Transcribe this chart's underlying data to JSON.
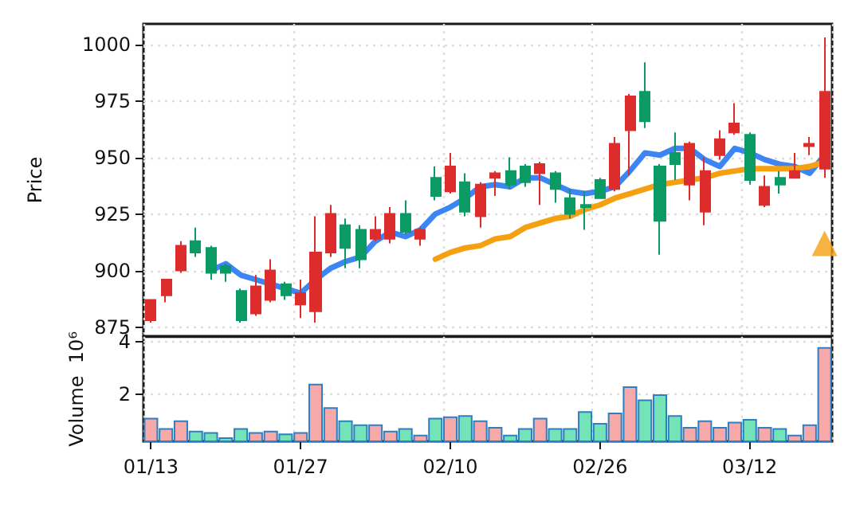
{
  "chart_data": [
    {
      "type": "candlestick",
      "ylabel": "Price",
      "categories": [
        null,
        null,
        null,
        null,
        null,
        null,
        null,
        null,
        null,
        null,
        null,
        null,
        null,
        null,
        null,
        null,
        null,
        null,
        null,
        null,
        null,
        null,
        null,
        null,
        null,
        null,
        null,
        null,
        null,
        null,
        null,
        null,
        null,
        null,
        null,
        null,
        null,
        null,
        null,
        null,
        null,
        null,
        null,
        null,
        null,
        null
      ],
      "ylim": [
        871,
        1009
      ],
      "yticks": [
        875,
        900,
        925,
        950,
        975,
        1000
      ],
      "grid": true,
      "tick_labels": "y",
      "series": [
        {
          "type": "candlestick",
          "ohlc": [
            [
              878,
              887,
              877,
              887
            ],
            [
              889,
              896,
              886,
              896
            ],
            [
              900,
              913,
              899,
              911
            ],
            [
              913,
              919,
              906,
              908
            ],
            [
              910,
              911,
              896,
              899
            ],
            [
              902,
              903,
              895,
              899
            ],
            [
              891,
              892,
              877,
              878
            ],
            [
              881,
              898,
              880,
              893
            ],
            [
              887,
              905,
              886,
              900
            ],
            [
              894,
              895,
              887,
              889
            ],
            [
              885,
              896,
              879,
              890
            ],
            [
              882,
              924,
              877,
              908
            ],
            [
              908,
              929,
              906,
              925
            ],
            [
              920,
              923,
              901,
              910
            ],
            [
              918,
              920,
              901,
              905
            ],
            [
              914,
              924,
              913,
              918
            ],
            [
              914,
              928,
              912,
              925
            ],
            [
              925,
              931,
              916,
              917
            ],
            [
              914,
              919,
              911,
              918
            ],
            [
              941,
              946,
              931,
              933
            ],
            [
              935,
              952,
              934,
              946
            ],
            [
              939,
              943,
              924,
              926
            ],
            [
              924,
              939,
              919,
              938
            ],
            [
              941,
              944,
              933,
              943
            ],
            [
              944,
              950,
              936,
              938
            ],
            [
              946,
              947,
              937,
              939
            ],
            [
              943,
              948,
              929,
              947
            ],
            [
              943,
              944,
              930,
              936
            ],
            [
              932,
              936,
              923,
              925
            ],
            [
              929,
              935,
              918,
              928
            ],
            [
              940,
              941,
              932,
              932
            ],
            [
              936,
              959,
              935,
              956
            ],
            [
              962,
              978,
              942,
              977
            ],
            [
              979,
              992,
              963,
              966
            ],
            [
              946,
              947,
              907,
              922
            ],
            [
              952,
              961,
              940,
              947
            ],
            [
              938,
              957,
              931,
              956
            ],
            [
              926,
              950,
              920,
              944
            ],
            [
              951,
              962,
              949,
              958
            ],
            [
              961,
              974,
              960,
              965
            ],
            [
              960,
              961,
              938,
              940
            ],
            [
              929,
              942,
              928,
              937
            ],
            [
              941,
              944,
              934,
              938
            ],
            [
              941,
              952,
              941,
              944
            ],
            [
              955,
              959,
              951,
              956
            ],
            [
              945,
              1003,
              941,
              979
            ]
          ],
          "colors": [
            "#dd2c2c",
            "#dd2c2c",
            "#dd2c2c",
            "#0b9a64",
            "#0b9a64",
            "#0b9a64",
            "#0b9a64",
            "#dd2c2c",
            "#dd2c2c",
            "#0b9a64",
            "#dd2c2c",
            "#dd2c2c",
            "#dd2c2c",
            "#0b9a64",
            "#0b9a64",
            "#dd2c2c",
            "#dd2c2c",
            "#0b9a64",
            "#dd2c2c",
            "#0b9a64",
            "#dd2c2c",
            "#0b9a64",
            "#dd2c2c",
            "#dd2c2c",
            "#0b9a64",
            "#0b9a64",
            "#dd2c2c",
            "#0b9a64",
            "#0b9a64",
            "#0b9a64",
            "#0b9a64",
            "#dd2c2c",
            "#dd2c2c",
            "#0b9a64",
            "#0b9a64",
            "#0b9a64",
            "#dd2c2c",
            "#dd2c2c",
            "#dd2c2c",
            "#dd2c2c",
            "#0b9a64",
            "#dd2c2c",
            "#0b9a64",
            "#dd2c2c",
            "#dd2c2c",
            "#dd2c2c"
          ]
        },
        {
          "type": "line",
          "color": "#3d85f5",
          "marker": "none",
          "line_style": "solid",
          "values": [
            null,
            null,
            null,
            null,
            900,
            903,
            898,
            896,
            894,
            892,
            890,
            896,
            901,
            904,
            906,
            913,
            917,
            915,
            918,
            925,
            928,
            932,
            937,
            938,
            937,
            941,
            941,
            938,
            935,
            934,
            935,
            937,
            944,
            952,
            951,
            954,
            954,
            949,
            946,
            954,
            952,
            949,
            947,
            946,
            943,
            951
          ]
        },
        {
          "type": "line",
          "color": "#f5a011",
          "marker": "none",
          "line_style": "solid",
          "values": [
            null,
            null,
            null,
            null,
            null,
            null,
            null,
            null,
            null,
            null,
            null,
            null,
            null,
            null,
            null,
            null,
            null,
            null,
            null,
            905,
            908,
            910,
            911,
            914,
            915,
            919,
            921,
            923,
            924,
            927,
            929,
            932,
            934,
            936,
            938,
            939,
            940,
            941,
            943,
            944,
            945,
            945,
            945,
            945,
            946,
            948
          ]
        },
        {
          "type": "scatter",
          "color": "#f5a011",
          "marker": "triangle",
          "values": [
            null,
            null,
            null,
            null,
            null,
            null,
            null,
            null,
            null,
            null,
            null,
            null,
            null,
            null,
            null,
            null,
            null,
            null,
            null,
            null,
            null,
            null,
            null,
            null,
            null,
            null,
            null,
            null,
            null,
            null,
            null,
            null,
            null,
            null,
            null,
            null,
            null,
            null,
            null,
            null,
            null,
            null,
            null,
            null,
            null,
            912
          ]
        }
      ]
    },
    {
      "type": "bar",
      "ylabel": "Volume  10⁶",
      "categories": [
        "01/13",
        null,
        null,
        null,
        null,
        null,
        null,
        null,
        null,
        null,
        "01/27",
        null,
        null,
        null,
        null,
        null,
        null,
        null,
        null,
        null,
        "02/10",
        null,
        null,
        null,
        null,
        null,
        null,
        null,
        null,
        null,
        "02/26",
        null,
        null,
        null,
        null,
        null,
        null,
        null,
        null,
        null,
        "03/12",
        null,
        null,
        null,
        null,
        null
      ],
      "ylim": [
        0.2,
        4.2
      ],
      "yticks": [
        2,
        4
      ],
      "grid": true,
      "values": [
        1.1,
        0.7,
        1.0,
        0.6,
        0.55,
        0.35,
        0.7,
        0.55,
        0.6,
        0.5,
        0.55,
        2.4,
        1.5,
        1.0,
        0.85,
        0.85,
        0.6,
        0.7,
        0.45,
        1.1,
        1.15,
        1.2,
        1.0,
        0.75,
        0.45,
        0.7,
        1.1,
        0.7,
        0.7,
        1.35,
        0.9,
        1.3,
        2.3,
        1.8,
        2.0,
        1.2,
        0.75,
        1.0,
        0.75,
        0.95,
        1.05,
        0.75,
        0.7,
        0.45,
        0.85,
        3.8
      ],
      "colors": [
        "#f7a8a8",
        "#f7a8a8",
        "#f7a8a8",
        "#74e4b8",
        "#74e4b8",
        "#74e4b8",
        "#74e4b8",
        "#f7a8a8",
        "#f7a8a8",
        "#74e4b8",
        "#f7a8a8",
        "#f7a8a8",
        "#f7a8a8",
        "#74e4b8",
        "#74e4b8",
        "#f7a8a8",
        "#f7a8a8",
        "#74e4b8",
        "#f7a8a8",
        "#74e4b8",
        "#f7a8a8",
        "#74e4b8",
        "#f7a8a8",
        "#f7a8a8",
        "#74e4b8",
        "#74e4b8",
        "#f7a8a8",
        "#74e4b8",
        "#74e4b8",
        "#74e4b8",
        "#74e4b8",
        "#f7a8a8",
        "#f7a8a8",
        "#74e4b8",
        "#74e4b8",
        "#74e4b8",
        "#f7a8a8",
        "#f7a8a8",
        "#f7a8a8",
        "#f7a8a8",
        "#74e4b8",
        "#f7a8a8",
        "#74e4b8",
        "#f7a8a8",
        "#f7a8a8",
        "#f7a8a8"
      ]
    }
  ]
}
